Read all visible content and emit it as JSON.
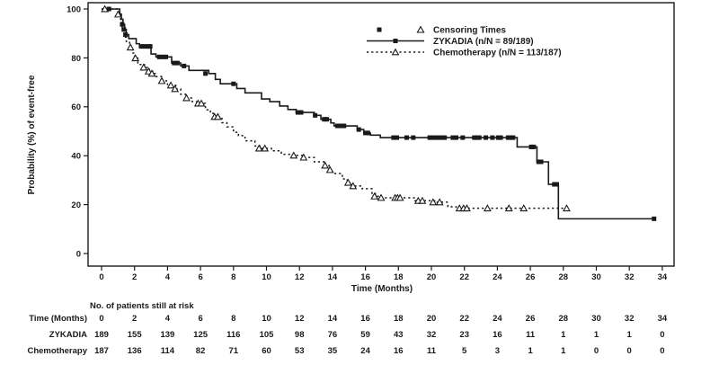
{
  "figure": {
    "background": "#ffffff",
    "ink_color": "#1a1a1a"
  },
  "chart_data": {
    "type": "line",
    "subtype": "kaplan-meier-step",
    "title": "",
    "xlabel": "Time (Months)",
    "ylabel": "Probability (%) of event-free",
    "xlim": [
      0,
      34
    ],
    "ylim": [
      0,
      100
    ],
    "xticks": [
      0,
      2,
      4,
      6,
      8,
      10,
      12,
      14,
      16,
      18,
      20,
      22,
      24,
      26,
      28,
      30,
      32,
      34
    ],
    "yticks": [
      0,
      20,
      40,
      60,
      80,
      100
    ],
    "grid": false,
    "legend": {
      "position": "top-right",
      "censoring_label": "Censoring Times",
      "entries": [
        {
          "name": "ZYKADIA (n/N = 89/189)",
          "line": "solid",
          "marker": "filled-square"
        },
        {
          "name": "Chemotherapy (n/N = 113/187)",
          "line": "dotted",
          "marker": "open-triangle"
        }
      ]
    },
    "series": [
      {
        "name": "ZYKADIA",
        "line": "solid",
        "marker": "filled-square",
        "steps": [
          [
            0,
            100
          ],
          [
            1.1,
            97.9
          ],
          [
            1.2,
            95.8
          ],
          [
            1.3,
            93.7
          ],
          [
            1.4,
            91.6
          ],
          [
            1.5,
            89.5
          ],
          [
            1.65,
            87.9
          ],
          [
            2.1,
            85.8
          ],
          [
            2.3,
            84.7
          ],
          [
            3.0,
            81.6
          ],
          [
            3.3,
            80.4
          ],
          [
            4.25,
            77.9
          ],
          [
            4.8,
            76.7
          ],
          [
            5.3,
            74.9
          ],
          [
            6.5,
            73.6
          ],
          [
            6.9,
            71.2
          ],
          [
            7.2,
            69.4
          ],
          [
            8.2,
            67.5
          ],
          [
            8.7,
            65.7
          ],
          [
            9.7,
            63.2
          ],
          [
            10.2,
            62.1
          ],
          [
            10.8,
            60.3
          ],
          [
            11.3,
            58.9
          ],
          [
            11.8,
            57.7
          ],
          [
            12.9,
            56.5
          ],
          [
            13.3,
            54.9
          ],
          [
            13.9,
            53.4
          ],
          [
            14.1,
            52.2
          ],
          [
            15.5,
            50.7
          ],
          [
            15.9,
            49.3
          ],
          [
            16.3,
            48.4
          ],
          [
            16.9,
            47.4
          ],
          [
            25.2,
            43.6
          ],
          [
            26.4,
            37.5
          ],
          [
            27.1,
            28.3
          ],
          [
            27.7,
            14.2
          ],
          [
            33.5,
            14.2
          ]
        ],
        "censors": [
          [
            0.45,
            100
          ],
          [
            1.25,
            93.7
          ],
          [
            1.35,
            91.6
          ],
          [
            1.45,
            89.5
          ],
          [
            2.4,
            84.7
          ],
          [
            2.6,
            84.7
          ],
          [
            2.8,
            84.7
          ],
          [
            2.95,
            84.7
          ],
          [
            3.5,
            80.4
          ],
          [
            3.7,
            80.4
          ],
          [
            3.9,
            80.4
          ],
          [
            4.4,
            77.9
          ],
          [
            4.6,
            77.9
          ],
          [
            5.0,
            76.7
          ],
          [
            6.3,
            73.6
          ],
          [
            8.0,
            69.4
          ],
          [
            11.9,
            57.7
          ],
          [
            12.1,
            57.7
          ],
          [
            12.95,
            56.5
          ],
          [
            13.5,
            54.9
          ],
          [
            13.65,
            54.9
          ],
          [
            14.3,
            52.2
          ],
          [
            14.5,
            52.2
          ],
          [
            14.7,
            52.2
          ],
          [
            15.6,
            50.7
          ],
          [
            16.0,
            49.3
          ],
          [
            16.15,
            49.3
          ],
          [
            17.7,
            47.4
          ],
          [
            17.9,
            47.4
          ],
          [
            18.5,
            47.4
          ],
          [
            18.9,
            47.4
          ],
          [
            19.9,
            47.4
          ],
          [
            20.05,
            47.4
          ],
          [
            20.2,
            47.4
          ],
          [
            20.4,
            47.4
          ],
          [
            20.6,
            47.4
          ],
          [
            20.8,
            47.4
          ],
          [
            21.3,
            47.4
          ],
          [
            21.5,
            47.4
          ],
          [
            21.9,
            47.4
          ],
          [
            22.6,
            47.4
          ],
          [
            22.75,
            47.4
          ],
          [
            22.9,
            47.4
          ],
          [
            23.3,
            47.4
          ],
          [
            23.7,
            47.4
          ],
          [
            24.05,
            47.4
          ],
          [
            24.2,
            47.4
          ],
          [
            24.65,
            47.4
          ],
          [
            24.8,
            47.4
          ],
          [
            24.95,
            47.4
          ],
          [
            26.05,
            43.6
          ],
          [
            26.2,
            43.6
          ],
          [
            26.5,
            37.5
          ],
          [
            26.65,
            37.5
          ],
          [
            27.45,
            28.3
          ],
          [
            27.6,
            28.3
          ],
          [
            33.5,
            14.2
          ]
        ]
      },
      {
        "name": "Chemotherapy",
        "line": "dotted",
        "marker": "open-triangle",
        "steps": [
          [
            0,
            100
          ],
          [
            1.0,
            97.8
          ],
          [
            1.15,
            94.5
          ],
          [
            1.25,
            91.5
          ],
          [
            1.4,
            88.5
          ],
          [
            1.5,
            86.7
          ],
          [
            1.7,
            84.3
          ],
          [
            1.85,
            82.0
          ],
          [
            2.0,
            79.9
          ],
          [
            2.2,
            77.3
          ],
          [
            2.6,
            76.1
          ],
          [
            2.9,
            74.5
          ],
          [
            3.1,
            73.6
          ],
          [
            3.3,
            72.4
          ],
          [
            3.7,
            70.6
          ],
          [
            4.0,
            68.8
          ],
          [
            4.5,
            67.3
          ],
          [
            4.8,
            65.1
          ],
          [
            5.1,
            63.6
          ],
          [
            5.5,
            62.1
          ],
          [
            5.8,
            61.4
          ],
          [
            6.3,
            58.8
          ],
          [
            6.6,
            57.3
          ],
          [
            6.9,
            55.9
          ],
          [
            7.3,
            53.5
          ],
          [
            7.6,
            51.8
          ],
          [
            8.0,
            49.6
          ],
          [
            8.3,
            48.2
          ],
          [
            8.7,
            46.1
          ],
          [
            9.3,
            44.0
          ],
          [
            9.6,
            43.0
          ],
          [
            10.3,
            42.0
          ],
          [
            10.9,
            40.6
          ],
          [
            11.6,
            40.1
          ],
          [
            12.3,
            39.3
          ],
          [
            12.9,
            37.5
          ],
          [
            13.5,
            36.0
          ],
          [
            13.8,
            34.2
          ],
          [
            14.0,
            32.7
          ],
          [
            14.6,
            30.5
          ],
          [
            14.9,
            29.0
          ],
          [
            15.2,
            27.6
          ],
          [
            15.8,
            26.5
          ],
          [
            16.4,
            24.6
          ],
          [
            16.6,
            23.4
          ],
          [
            16.9,
            22.8
          ],
          [
            19.0,
            21.6
          ],
          [
            20.3,
            21.0
          ],
          [
            21.0,
            19.1
          ],
          [
            21.5,
            18.5
          ],
          [
            28.2,
            18.5
          ]
        ],
        "censors": [
          [
            0.2,
            100
          ],
          [
            1.0,
            97.8
          ],
          [
            1.75,
            84.3
          ],
          [
            2.05,
            79.9
          ],
          [
            2.55,
            76.1
          ],
          [
            2.85,
            74.5
          ],
          [
            3.05,
            73.6
          ],
          [
            3.65,
            70.6
          ],
          [
            4.2,
            68.8
          ],
          [
            4.45,
            67.3
          ],
          [
            5.15,
            63.6
          ],
          [
            5.85,
            61.4
          ],
          [
            6.05,
            61.4
          ],
          [
            6.85,
            55.9
          ],
          [
            7.05,
            55.9
          ],
          [
            9.55,
            43.0
          ],
          [
            9.9,
            43.0
          ],
          [
            11.65,
            40.1
          ],
          [
            12.25,
            39.3
          ],
          [
            13.55,
            36.0
          ],
          [
            13.85,
            34.2
          ],
          [
            14.95,
            29.0
          ],
          [
            15.25,
            27.6
          ],
          [
            16.55,
            23.4
          ],
          [
            16.95,
            22.8
          ],
          [
            17.8,
            22.8
          ],
          [
            17.95,
            22.8
          ],
          [
            18.1,
            22.8
          ],
          [
            19.2,
            21.6
          ],
          [
            19.45,
            21.6
          ],
          [
            20.1,
            21.0
          ],
          [
            20.5,
            21.0
          ],
          [
            21.7,
            18.5
          ],
          [
            21.95,
            18.5
          ],
          [
            22.15,
            18.5
          ],
          [
            23.4,
            18.5
          ],
          [
            24.7,
            18.5
          ],
          [
            25.6,
            18.5
          ],
          [
            28.2,
            18.5
          ]
        ]
      }
    ]
  },
  "risk_table": {
    "title": "No. of patients still at risk",
    "row_labels": [
      "Time (Months)",
      "ZYKADIA",
      "Chemotherapy"
    ],
    "time": [
      0,
      2,
      4,
      6,
      8,
      10,
      12,
      14,
      16,
      18,
      20,
      22,
      24,
      26,
      28,
      30,
      32,
      34
    ],
    "zykadia": [
      189,
      155,
      139,
      125,
      116,
      105,
      98,
      76,
      59,
      43,
      32,
      23,
      16,
      11,
      1,
      1,
      1,
      0
    ],
    "chemotherapy": [
      187,
      136,
      114,
      82,
      71,
      60,
      53,
      35,
      24,
      16,
      11,
      5,
      3,
      1,
      1,
      0,
      0,
      0
    ]
  }
}
